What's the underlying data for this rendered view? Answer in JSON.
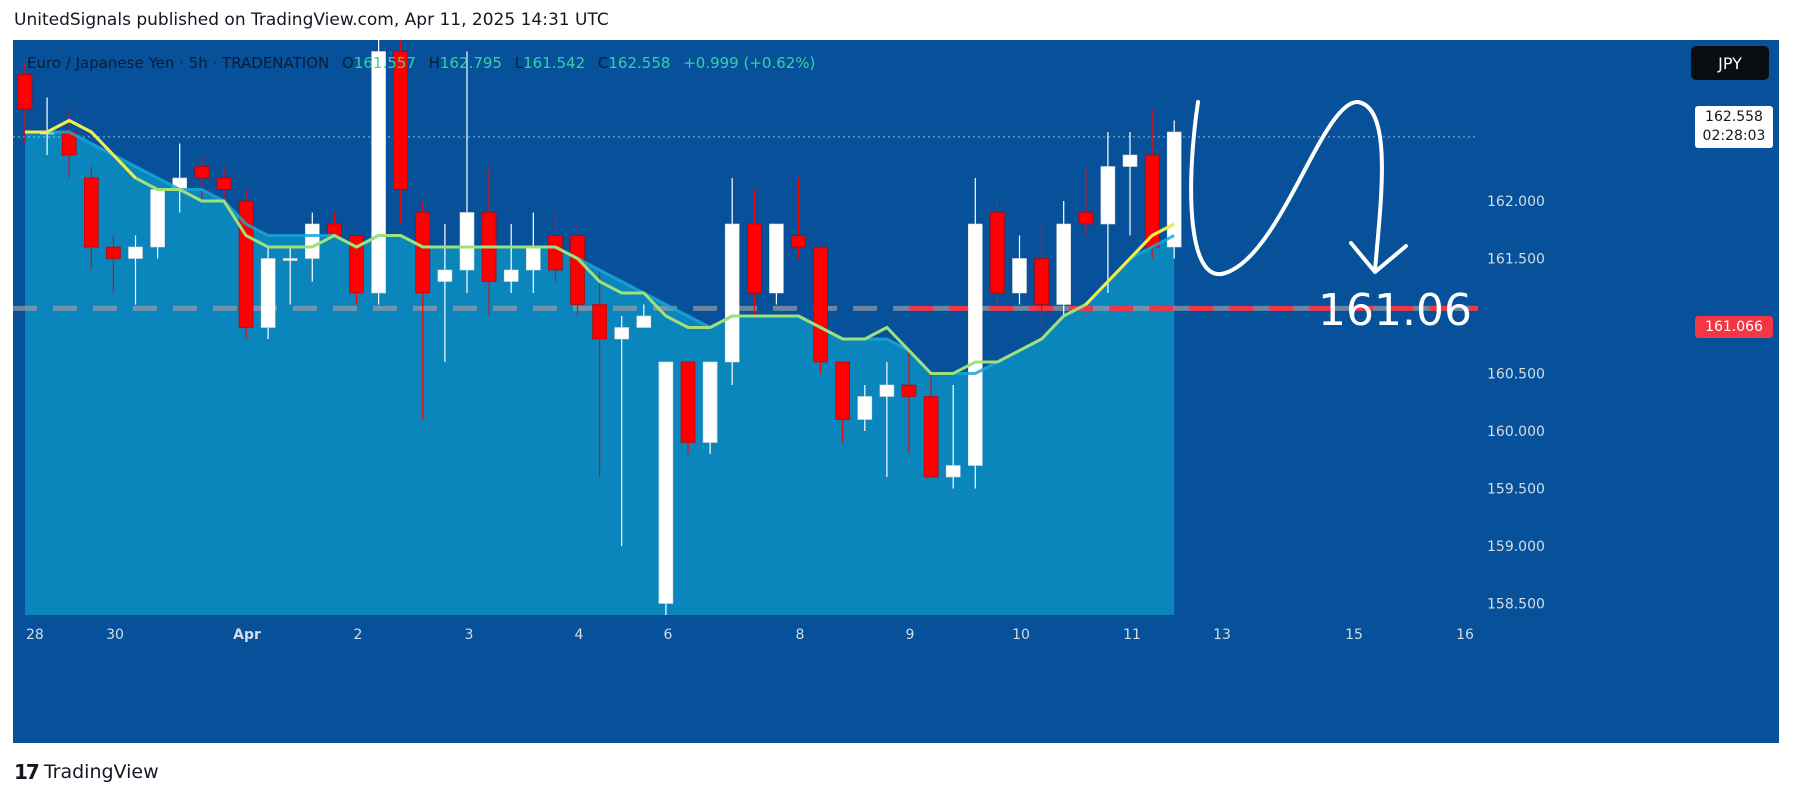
{
  "header": {
    "published_by": "UnitedSignals published on TradingView.com, Apr 11, 2025 14:31 UTC"
  },
  "legend": {
    "symbol": "Euro / Japanese Yen · 5h · TRADENATION",
    "open_label": "O",
    "open": "161.557",
    "high_label": "H",
    "high": "162.795",
    "low_label": "L",
    "low": "161.542",
    "close_label": "C",
    "close": "162.558",
    "change": "+0.999 (+0.62%)"
  },
  "currency_button": "JPY",
  "price_tag": {
    "price": "162.558",
    "countdown": "02:28:03"
  },
  "target_tag": "161.066",
  "annotation_text": "161.06",
  "footer": {
    "brand": "TradingView"
  },
  "colors": {
    "background": "#06519a",
    "area": "#0a86bd",
    "bull": "#ffffff",
    "bear": "#ff0000",
    "ema_fast": "#f4ec4a",
    "ema_slow": "#9fe07a",
    "target_line": "#f23645"
  },
  "chart_data": {
    "type": "candlestick",
    "symbol": "EURJPY",
    "timeframe": "5h",
    "ylim": [
      158.4,
      163.4
    ],
    "y_ticks": [
      "162.000",
      "161.500",
      "160.500",
      "160.000",
      "159.500",
      "159.000",
      "158.500"
    ],
    "x_ticks": [
      "28",
      "30",
      "Apr",
      "2",
      "3",
      "4",
      "6",
      "8",
      "9",
      "10",
      "11",
      "13",
      "15",
      "16"
    ],
    "ohlc": [
      [
        163.1,
        163.2,
        162.5,
        162.8
      ],
      [
        162.6,
        162.9,
        162.4,
        162.6
      ],
      [
        162.6,
        162.8,
        162.2,
        162.4
      ],
      [
        162.2,
        162.3,
        161.4,
        161.6
      ],
      [
        161.6,
        161.7,
        161.2,
        161.5
      ],
      [
        161.5,
        161.7,
        161.1,
        161.6
      ],
      [
        161.6,
        162.1,
        161.5,
        162.1
      ],
      [
        162.1,
        162.5,
        161.9,
        162.2
      ],
      [
        162.3,
        162.4,
        162.0,
        162.2
      ],
      [
        162.2,
        162.3,
        162.0,
        162.1
      ],
      [
        162.0,
        162.1,
        160.8,
        160.9
      ],
      [
        160.9,
        161.6,
        160.8,
        161.5
      ],
      [
        161.5,
        161.6,
        161.1,
        161.5
      ],
      [
        161.5,
        161.9,
        161.3,
        161.8
      ],
      [
        161.8,
        161.9,
        161.7,
        161.7
      ],
      [
        161.7,
        161.7,
        161.1,
        161.2
      ],
      [
        161.2,
        163.4,
        161.1,
        163.3
      ],
      [
        163.3,
        163.4,
        161.8,
        162.1
      ],
      [
        161.9,
        162.0,
        160.1,
        161.2
      ],
      [
        161.3,
        161.8,
        160.6,
        161.4
      ],
      [
        161.4,
        163.3,
        161.2,
        161.9
      ],
      [
        161.9,
        162.3,
        161.0,
        161.3
      ],
      [
        161.3,
        161.8,
        161.2,
        161.4
      ],
      [
        161.4,
        161.9,
        161.2,
        161.6
      ],
      [
        161.7,
        161.9,
        161.3,
        161.4
      ],
      [
        161.7,
        161.8,
        161.0,
        161.1
      ],
      [
        161.1,
        161.4,
        159.6,
        160.8
      ],
      [
        160.8,
        161.0,
        159.0,
        160.9
      ],
      [
        160.9,
        161.1,
        160.9,
        161.0
      ],
      [
        158.5,
        160.6,
        158.4,
        160.6
      ],
      [
        160.6,
        160.6,
        159.8,
        159.9
      ],
      [
        159.9,
        160.6,
        159.8,
        160.6
      ],
      [
        160.6,
        162.2,
        160.4,
        161.8
      ],
      [
        161.8,
        162.1,
        161.0,
        161.2
      ],
      [
        161.2,
        161.8,
        161.1,
        161.8
      ],
      [
        161.7,
        162.2,
        161.5,
        161.6
      ],
      [
        161.6,
        161.6,
        160.5,
        160.6
      ],
      [
        160.6,
        160.6,
        159.9,
        160.1
      ],
      [
        160.1,
        160.4,
        160.0,
        160.3
      ],
      [
        160.3,
        160.6,
        159.6,
        160.4
      ],
      [
        160.4,
        160.7,
        159.8,
        160.3
      ],
      [
        160.3,
        160.5,
        159.6,
        159.6
      ],
      [
        159.6,
        160.4,
        159.5,
        159.7
      ],
      [
        159.7,
        162.2,
        159.5,
        161.8
      ],
      [
        161.9,
        162.0,
        161.1,
        161.2
      ],
      [
        161.2,
        161.7,
        161.1,
        161.5
      ],
      [
        161.5,
        161.8,
        160.9,
        161.1
      ],
      [
        161.1,
        162.0,
        161.0,
        161.8
      ],
      [
        161.9,
        162.3,
        161.7,
        161.8
      ],
      [
        161.8,
        162.6,
        161.2,
        162.3
      ],
      [
        162.3,
        162.6,
        161.7,
        162.4
      ],
      [
        162.4,
        162.8,
        161.5,
        161.6
      ],
      [
        161.6,
        162.7,
        161.5,
        162.6
      ]
    ],
    "ema_fast": [
      162.6,
      162.6,
      162.7,
      162.6,
      162.4,
      162.2,
      162.1,
      162.1,
      162.0,
      162.0,
      161.7,
      161.6,
      161.6,
      161.6,
      161.7,
      161.6,
      161.7,
      161.7,
      161.6,
      161.6,
      161.6,
      161.6,
      161.6,
      161.6,
      161.6,
      161.5,
      161.3,
      161.2,
      161.2,
      161.0,
      160.9,
      160.9,
      161.0,
      161.0,
      161.0,
      161.0,
      160.9,
      160.8,
      160.8,
      160.9,
      160.7,
      160.5,
      160.5,
      160.6,
      160.6,
      160.7,
      160.8,
      161.0,
      161.1,
      161.3,
      161.5,
      161.7,
      161.8
    ],
    "ema_slow": [
      162.6,
      162.6,
      162.6,
      162.5,
      162.4,
      162.3,
      162.2,
      162.1,
      162.1,
      162.0,
      161.8,
      161.7,
      161.7,
      161.7,
      161.7,
      161.6,
      161.7,
      161.7,
      161.6,
      161.6,
      161.6,
      161.6,
      161.6,
      161.6,
      161.6,
      161.5,
      161.4,
      161.3,
      161.2,
      161.1,
      161.0,
      160.9,
      161.0,
      161.0,
      161.0,
      161.0,
      160.9,
      160.8,
      160.8,
      160.8,
      160.7,
      160.5,
      160.5,
      160.5,
      160.6,
      160.7,
      160.8,
      161.0,
      161.1,
      161.3,
      161.5,
      161.6,
      161.7
    ],
    "target_price": 161.066,
    "last_price": 162.558
  }
}
